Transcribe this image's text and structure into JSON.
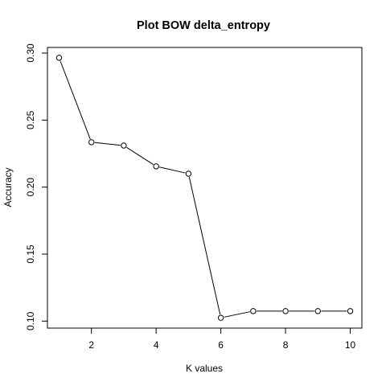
{
  "chart_data": {
    "type": "line",
    "title": "Plot BOW delta_entropy",
    "xlabel": "K values",
    "ylabel": "Accuracy",
    "x": [
      1,
      2,
      3,
      4,
      5,
      6,
      7,
      8,
      9,
      10
    ],
    "y": [
      0.2965,
      0.2335,
      0.231,
      0.2155,
      0.21,
      0.1025,
      0.1075,
      0.1075,
      0.1075,
      0.1075
    ],
    "xlim": [
      0.64,
      10.36
    ],
    "ylim": [
      0.0948,
      0.3042
    ],
    "x_ticks": [
      "2",
      "4",
      "6",
      "8",
      "10"
    ],
    "y_ticks": [
      "0.10",
      "0.15",
      "0.20",
      "0.25",
      "0.30"
    ],
    "markers": "open-circle",
    "grid": false,
    "legend": "none"
  }
}
